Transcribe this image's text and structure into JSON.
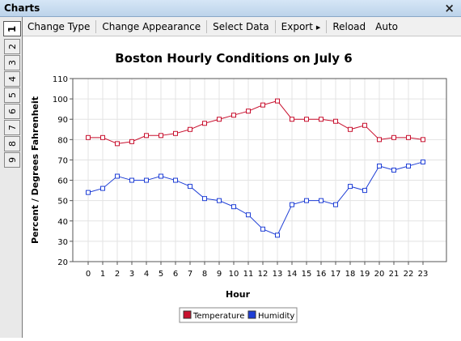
{
  "window": {
    "title": "Charts",
    "close_label": "×"
  },
  "tabs": [
    "1",
    "2",
    "3",
    "4",
    "5",
    "6",
    "7",
    "8",
    "9"
  ],
  "active_tab": "1",
  "toolbar": {
    "change_type": "Change Type",
    "change_appearance": "Change Appearance",
    "select_data": "Select Data",
    "export": "Export",
    "reload": "Reload",
    "auto": "Auto"
  },
  "chart_data": {
    "type": "line",
    "title": "Boston Hourly Conditions on July 6",
    "xlabel": "Hour",
    "ylabel": "Percent / Degrees Fahrenheit",
    "x": [
      0,
      1,
      2,
      3,
      4,
      5,
      6,
      7,
      8,
      9,
      10,
      11,
      12,
      13,
      14,
      15,
      16,
      17,
      18,
      19,
      20,
      21,
      22,
      23
    ],
    "ylim": [
      20,
      110
    ],
    "yticks": [
      20,
      30,
      40,
      50,
      60,
      70,
      80,
      90,
      100,
      110
    ],
    "grid": true,
    "legend": "bottom",
    "series": [
      {
        "name": "Temperature",
        "color": "#c8102e",
        "values": [
          81,
          81,
          78,
          79,
          82,
          82,
          83,
          85,
          88,
          90,
          92,
          94,
          97,
          99,
          90,
          90,
          90,
          89,
          85,
          87,
          80,
          81,
          81,
          80
        ]
      },
      {
        "name": "Humidity",
        "color": "#1f3fd6",
        "values": [
          54,
          56,
          62,
          60,
          60,
          62,
          60,
          57,
          51,
          50,
          47,
          43,
          36,
          33,
          48,
          50,
          50,
          48,
          57,
          55,
          67,
          65,
          67,
          69
        ]
      }
    ]
  }
}
